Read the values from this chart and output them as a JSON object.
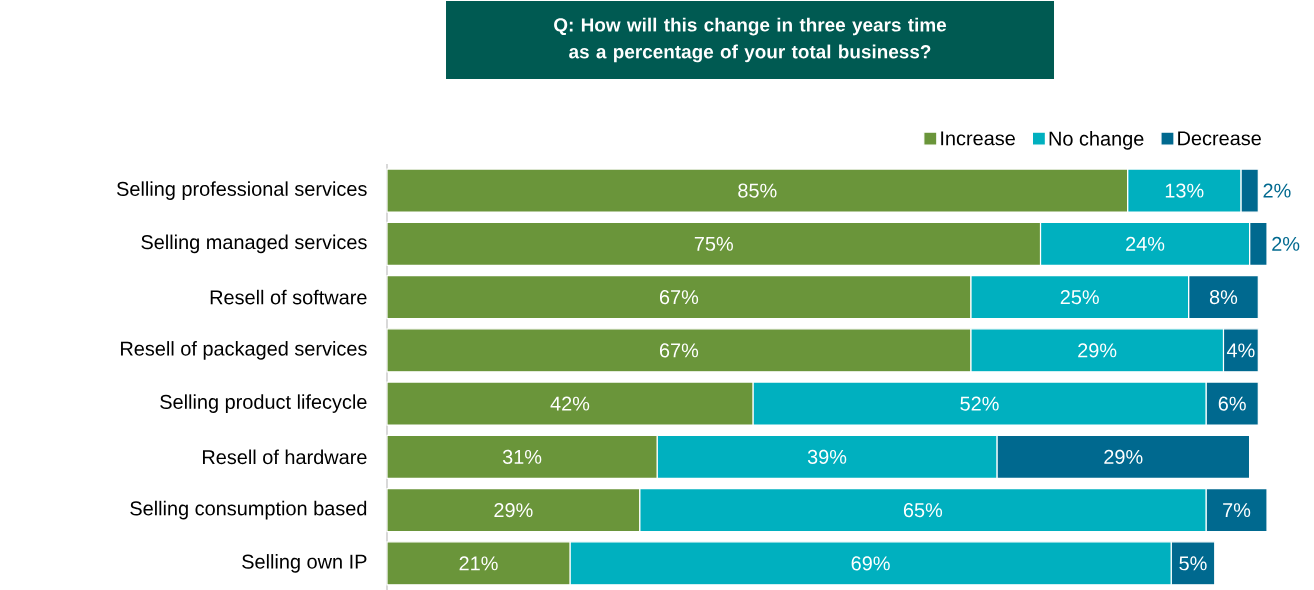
{
  "chart_data": {
    "type": "bar",
    "orientation": "horizontal",
    "stacked": true,
    "title": "Q:  How will this change in three years time as a percentage of your total business?",
    "categories": [
      "Selling professional services",
      "Selling managed services",
      "Resell of software",
      "Resell of packaged services",
      "Selling product lifecycle",
      "Resell of hardware",
      "Selling consumption based",
      "Selling own IP"
    ],
    "series": [
      {
        "name": "Increase",
        "color": "#6a953a",
        "values": [
          85,
          75,
          67,
          67,
          42,
          31,
          29,
          21
        ],
        "value_labels": [
          "85%",
          "75%",
          "67%",
          "67%",
          "42%",
          "31%",
          "29%",
          "21%"
        ]
      },
      {
        "name": "No change",
        "color": "#00b0bf",
        "values": [
          13,
          24,
          25,
          29,
          52,
          39,
          65,
          69
        ],
        "value_labels": [
          "13%",
          "24%",
          "25%",
          "29%",
          "52%",
          "39%",
          "65%",
          "69%"
        ]
      },
      {
        "name": "Decrease",
        "color": "#00698f",
        "values": [
          2,
          2,
          8,
          4,
          6,
          29,
          7,
          5
        ],
        "value_labels": [
          "2%",
          "2%",
          "8%",
          "4%",
          "6%",
          "29%",
          "7%",
          "5%"
        ]
      }
    ],
    "legend": "top right"
  }
}
